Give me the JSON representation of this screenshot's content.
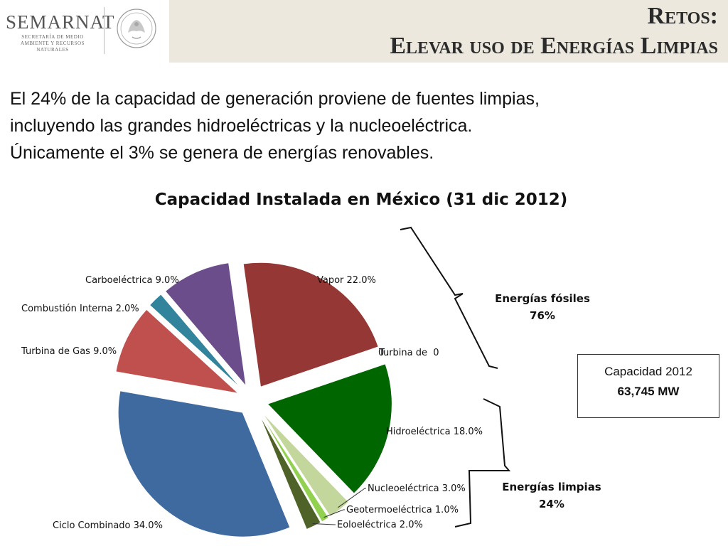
{
  "header": {
    "logo_text": "SEMARNAT",
    "logo_subtitle": "SECRETARÍA DE MEDIO AMBIENTE Y RECURSOS NATURALES",
    "title_line1": "Retos:",
    "title_line2": "Elevar uso de Energías Limpias"
  },
  "intro": {
    "line1": "El 24% de la capacidad de generación proviene de fuentes limpias,",
    "line2": "incluyendo las grandes hidroeléctricas y la nucleoeléctrica.",
    "line3": "Únicamente el 3% se genera de energías renovables."
  },
  "capacity_box": {
    "label": "Capacidad 2012",
    "value": "63,745 MW"
  },
  "colors": {
    "header_bg": "#ece8dd",
    "vapor": "#953735",
    "hidro": "#006600",
    "nucleo": "#c3d69b",
    "geotermo": "#92d050",
    "eolo": "#4f6228",
    "ciclo": "#3e6aa0",
    "turbina_gas": "#c0504d",
    "combustion": "#31849b",
    "carbo": "#6a4d8a"
  },
  "chart_data": {
    "type": "pie",
    "title": "Capacidad Instalada en México (31 dic 2012)",
    "slices": [
      {
        "name": "Vapor",
        "value": 22.0,
        "label": "Vapor 22.0%",
        "color": "#953735"
      },
      {
        "name": "Turbina de",
        "value": 0,
        "label": "Turbina de  0",
        "color": "#ffffff"
      },
      {
        "name": "Hidroeléctrica",
        "value": 18.0,
        "label": "Hidroeléctrica 18.0%",
        "color": "#006600"
      },
      {
        "name": "Nucleoeléctrica",
        "value": 3.0,
        "label": "Nucleoeléctrica 3.0%",
        "color": "#c3d69b"
      },
      {
        "name": "Geotermoeléctrica",
        "value": 1.0,
        "label": "Geotermoeléctrica 1.0%",
        "color": "#92d050"
      },
      {
        "name": "Eoloeléctrica",
        "value": 2.0,
        "label": "Eoloeléctrica 2.0%",
        "color": "#4f6228"
      },
      {
        "name": "Ciclo Combinado",
        "value": 34.0,
        "label": "Ciclo Combinado 34.0%",
        "color": "#3e6aa0"
      },
      {
        "name": "Turbina de Gas",
        "value": 9.0,
        "label": "Turbina de Gas 9.0%",
        "color": "#c0504d"
      },
      {
        "name": "Combustión Interna",
        "value": 2.0,
        "label": "Combustión Interna 2.0%",
        "color": "#31849b"
      },
      {
        "name": "Carboeléctrica",
        "value": 9.0,
        "label": "Carboeléctrica 9.0%",
        "color": "#6a4d8a"
      }
    ],
    "stray_label": "0",
    "groups": [
      {
        "label_line1": "Energías fósiles",
        "label_line2": "76%"
      },
      {
        "label_line1": "Energías limpias",
        "label_line2": "24%"
      }
    ]
  }
}
